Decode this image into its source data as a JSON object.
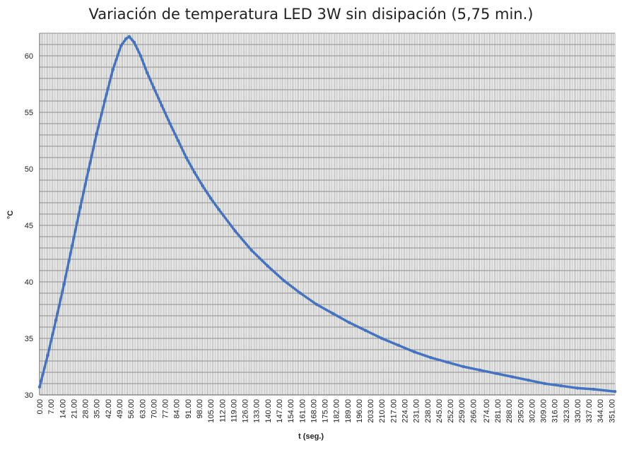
{
  "chart_data": {
    "type": "line",
    "title": "Variación de temperatura LED 3W sin disipación (5,75 min.)",
    "xlabel": "t (seg.)",
    "ylabel": "°C",
    "xlim": [
      0,
      353
    ],
    "ylim": [
      30,
      62
    ],
    "y_ticks": [
      "30",
      "35",
      "40",
      "45",
      "50",
      "55",
      "60"
    ],
    "x_ticks": [
      "0.00",
      "7.00",
      "14.00",
      "21.00",
      "28.00",
      "35.00",
      "42.00",
      "49.00",
      "56.00",
      "63.00",
      "70.00",
      "77.00",
      "84.00",
      "91.00",
      "98.00",
      "105.00",
      "112.00",
      "119.00",
      "126.00",
      "133.00",
      "140.00",
      "147.00",
      "154.00",
      "161.00",
      "168.00",
      "175.00",
      "182.00",
      "189.00",
      "196.00",
      "203.00",
      "210.00",
      "217.00",
      "224.00",
      "231.00",
      "238.00",
      "245.00",
      "252.00",
      "259.00",
      "266.00",
      "274.00",
      "281.00",
      "288.00",
      "295.00",
      "302.00",
      "309.00",
      "316.00",
      "323.00",
      "330.00",
      "337.00",
      "344.00",
      "351.00"
    ],
    "grid": true,
    "legend": "none",
    "series_color": "#4472C4",
    "series": [
      {
        "x": [
          0,
          5,
          10,
          15,
          20,
          25,
          30,
          35,
          40,
          45,
          50,
          53,
          55,
          58,
          62,
          66,
          70,
          75,
          80,
          85,
          90,
          95,
          100,
          105,
          110,
          120,
          130,
          140,
          150,
          160,
          170,
          180,
          190,
          200,
          210,
          220,
          230,
          240,
          250,
          260,
          270,
          280,
          290,
          300,
          310,
          320,
          330,
          340,
          353
        ],
        "y": [
          30.7,
          33.5,
          36.6,
          39.8,
          43.2,
          46.6,
          49.9,
          53.1,
          56.0,
          58.8,
          60.9,
          61.5,
          61.7,
          61.2,
          60.0,
          58.5,
          57.2,
          55.6,
          54.0,
          52.5,
          51.0,
          49.7,
          48.5,
          47.4,
          46.4,
          44.5,
          42.8,
          41.4,
          40.1,
          39.0,
          38.0,
          37.2,
          36.4,
          35.7,
          35.0,
          34.4,
          33.8,
          33.3,
          32.9,
          32.5,
          32.2,
          31.9,
          31.6,
          31.3,
          31.0,
          30.8,
          30.6,
          30.5,
          30.3
        ]
      }
    ]
  }
}
